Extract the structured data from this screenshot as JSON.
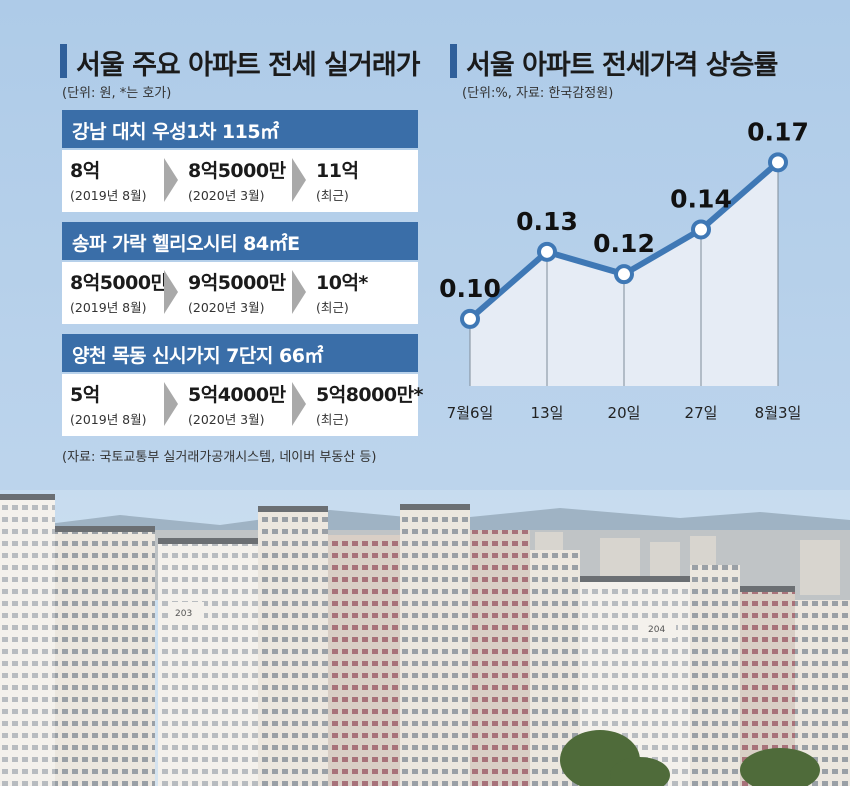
{
  "left": {
    "title": "서울 주요 아파트 전세 실거래가",
    "unit": "(단위: 원, *는 호가)",
    "apartments": [
      {
        "name": "강남 대치 우성1차 115㎡",
        "steps": [
          {
            "price": "8억",
            "date": "(2019년 8월)"
          },
          {
            "price": "8억5000만",
            "date": "(2020년 3월)"
          },
          {
            "price": "11억",
            "date": "(최근)"
          }
        ]
      },
      {
        "name": "송파 가락 헬리오시티 84㎡E",
        "steps": [
          {
            "price": "8억5000만",
            "date": "(2019년 8월)"
          },
          {
            "price": "9억5000만",
            "date": "(2020년 3월)"
          },
          {
            "price": "10억*",
            "date": "(최근)"
          }
        ]
      },
      {
        "name": "양천 목동 신시가지 7단지 66㎡",
        "steps": [
          {
            "price": "5억",
            "date": "(2019년 8월)"
          },
          {
            "price": "5억4000만",
            "date": "(2020년 3월)"
          },
          {
            "price": "5억8000만*",
            "date": "(최근)"
          }
        ]
      }
    ],
    "source": "(자료: 국토교통부 실거래가공개시스템, 네이버 부동산 등)"
  },
  "right": {
    "title": "서울 아파트 전세가격 상승률",
    "unit": "(단위:%, 자료: 한국감정원)"
  },
  "photo": {
    "building_numbers": [
      "203",
      "204"
    ]
  },
  "colors": {
    "accent": "#3a6ea8",
    "line": "#3f78b5",
    "area": "#e6ecf5",
    "background": "#b9d2ec"
  },
  "chart_data": {
    "type": "line",
    "title": "서울 아파트 전세가격 상승률",
    "categories": [
      "7월6일",
      "13일",
      "20일",
      "27일",
      "8월3일"
    ],
    "values": [
      0.1,
      0.13,
      0.12,
      0.14,
      0.17
    ],
    "value_labels": [
      "0.10",
      "0.13",
      "0.12",
      "0.14",
      "0.17"
    ],
    "ylim": [
      0.07,
      0.18
    ],
    "grid": false,
    "legend": "none"
  }
}
